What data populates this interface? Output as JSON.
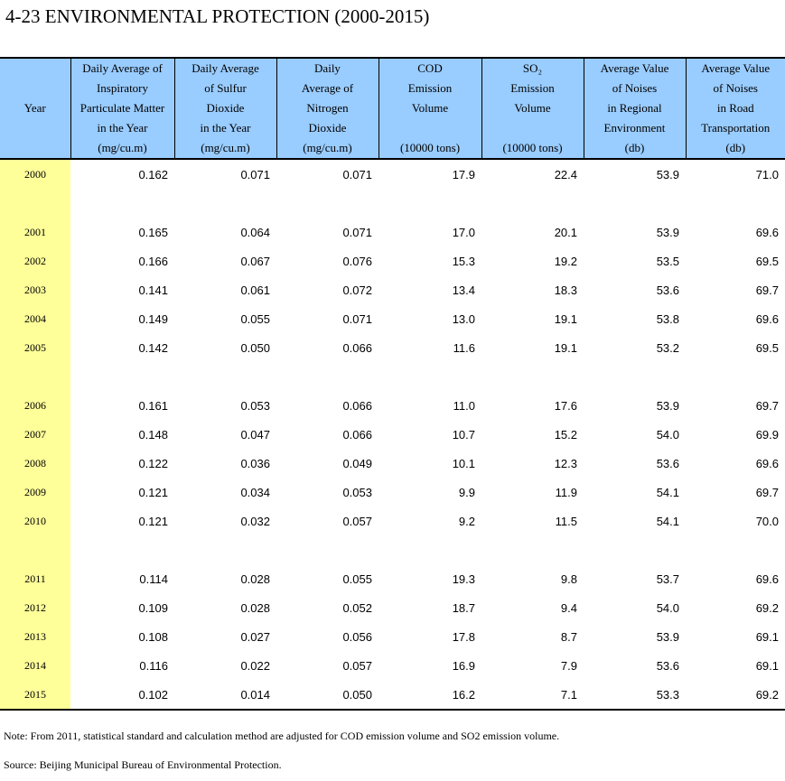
{
  "title": "4-23  ENVIRONMENTAL PROTECTION (2000-2015)",
  "columns": [
    {
      "lines": [
        "Year"
      ],
      "unit": ""
    },
    {
      "lines": [
        "Daily Average of",
        "Inspiratory",
        "Particulate Matter",
        "in the Year"
      ],
      "unit": "(mg/cu.m)"
    },
    {
      "lines": [
        "Daily Average",
        "of Sulfur",
        "Dioxide",
        "in the Year"
      ],
      "unit": "(mg/cu.m)"
    },
    {
      "lines": [
        "Daily",
        "Average of",
        "Nitrogen",
        "Dioxide"
      ],
      "unit": "(mg/cu.m)"
    },
    {
      "lines": [
        "COD",
        "Emission",
        "Volume",
        ""
      ],
      "unit": "(10000 tons)"
    },
    {
      "lines": [
        "SO₂",
        "Emission",
        "Volume",
        ""
      ],
      "unit": "(10000 tons)"
    },
    {
      "lines": [
        "Average Value",
        "of Noises",
        "in Regional",
        "Environment"
      ],
      "unit": "(db)"
    },
    {
      "lines": [
        "Average Value",
        "of Noises",
        "in Road",
        "Transportation"
      ],
      "unit": "(db)"
    }
  ],
  "rows": [
    {
      "year": "2000",
      "values": [
        "0.162",
        "0.071",
        "0.071",
        "17.9",
        "22.4",
        "53.9",
        "71.0"
      ]
    },
    {
      "gap": true
    },
    {
      "year": "2001",
      "values": [
        "0.165",
        "0.064",
        "0.071",
        "17.0",
        "20.1",
        "53.9",
        "69.6"
      ]
    },
    {
      "year": "2002",
      "values": [
        "0.166",
        "0.067",
        "0.076",
        "15.3",
        "19.2",
        "53.5",
        "69.5"
      ]
    },
    {
      "year": "2003",
      "values": [
        "0.141",
        "0.061",
        "0.072",
        "13.4",
        "18.3",
        "53.6",
        "69.7"
      ]
    },
    {
      "year": "2004",
      "values": [
        "0.149",
        "0.055",
        "0.071",
        "13.0",
        "19.1",
        "53.8",
        "69.6"
      ]
    },
    {
      "year": "2005",
      "values": [
        "0.142",
        "0.050",
        "0.066",
        "11.6",
        "19.1",
        "53.2",
        "69.5"
      ]
    },
    {
      "gap": true
    },
    {
      "year": "2006",
      "values": [
        "0.161",
        "0.053",
        "0.066",
        "11.0",
        "17.6",
        "53.9",
        "69.7"
      ]
    },
    {
      "year": "2007",
      "values": [
        "0.148",
        "0.047",
        "0.066",
        "10.7",
        "15.2",
        "54.0",
        "69.9"
      ]
    },
    {
      "year": "2008",
      "values": [
        "0.122",
        "0.036",
        "0.049",
        "10.1",
        "12.3",
        "53.6",
        "69.6"
      ]
    },
    {
      "year": "2009",
      "values": [
        "0.121",
        "0.034",
        "0.053",
        "9.9",
        "11.9",
        "54.1",
        "69.7"
      ]
    },
    {
      "year": "2010",
      "values": [
        "0.121",
        "0.032",
        "0.057",
        "9.2",
        "11.5",
        "54.1",
        "70.0"
      ]
    },
    {
      "gap": true
    },
    {
      "year": "2011",
      "values": [
        "0.114",
        "0.028",
        "0.055",
        "19.3",
        "9.8",
        "53.7",
        "69.6"
      ]
    },
    {
      "year": "2012",
      "values": [
        "0.109",
        "0.028",
        "0.052",
        "18.7",
        "9.4",
        "54.0",
        "69.2"
      ]
    },
    {
      "year": "2013",
      "values": [
        "0.108",
        "0.027",
        "0.056",
        "17.8",
        "8.7",
        "53.9",
        "69.1"
      ]
    },
    {
      "year": "2014",
      "values": [
        "0.116",
        "0.022",
        "0.057",
        "16.9",
        "7.9",
        "53.6",
        "69.1"
      ]
    },
    {
      "year": "2015",
      "values": [
        "0.102",
        "0.014",
        "0.050",
        "16.2",
        "7.1",
        "53.3",
        "69.2"
      ]
    }
  ],
  "note": "Note: From 2011, statistical standard and calculation method are adjusted for COD emission volume and SO2 emission volume.",
  "source": "Source: Beijing Municipal Bureau of Environmental Protection.",
  "colors": {
    "header_bg": "#99ccff",
    "year_bg": "#ffff99"
  }
}
